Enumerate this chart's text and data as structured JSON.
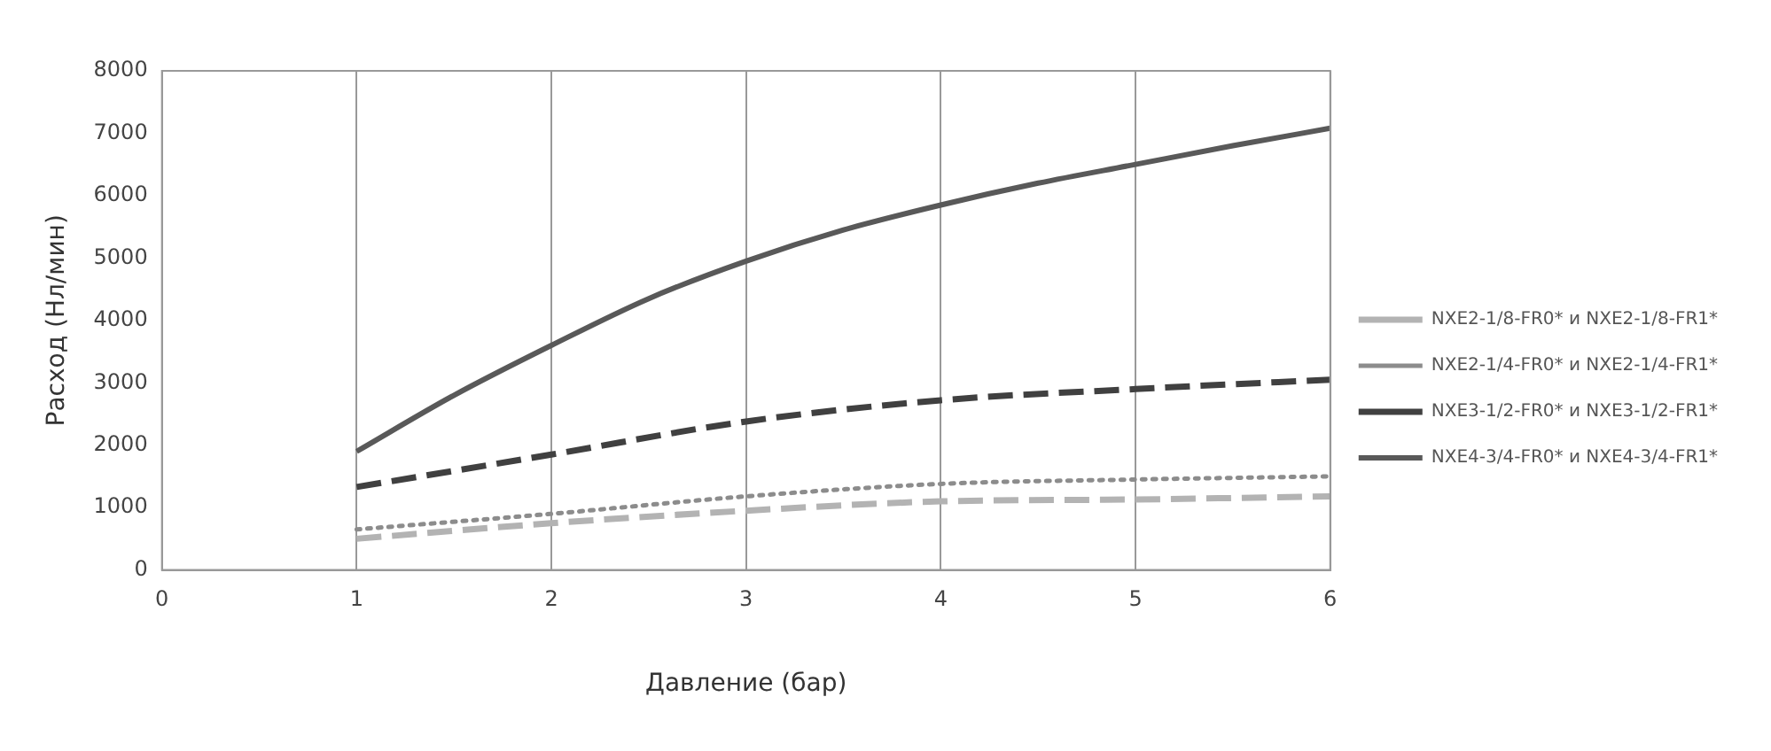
{
  "chart_data": {
    "type": "line",
    "xlabel": "Давление (бар)",
    "ylabel": "Расход (Нл/мин)",
    "xlim": [
      0,
      6
    ],
    "xticks": [
      0,
      1,
      2,
      3,
      4,
      5,
      6
    ],
    "ylim": [
      0,
      8000
    ],
    "yticks": [
      0,
      1000,
      2000,
      3000,
      4000,
      5000,
      6000,
      7000,
      8000
    ],
    "grid": "x",
    "legend": "right",
    "marker": "none",
    "series": [
      {
        "name": "NXE2-1/8-FR0* и NXE2-1/8-FR1*",
        "color": "#b3b3b3",
        "line_style": "dashed",
        "x": [
          1,
          2,
          3,
          4,
          5,
          6
        ],
        "values": [
          500,
          750,
          950,
          1100,
          1130,
          1180
        ]
      },
      {
        "name": "NXE2-1/4-FR0* и NXE2-1/4-FR1*",
        "color": "#8c8c8c",
        "line_style": "dotted",
        "x": [
          1,
          2,
          3,
          4,
          5,
          6
        ],
        "values": [
          650,
          900,
          1180,
          1380,
          1450,
          1500
        ]
      },
      {
        "name": "NXE3-1/2-FR0* и NXE3-1/2-FR1*",
        "color": "#404040",
        "line_style": "dashed",
        "x": [
          1,
          2,
          3,
          4,
          5,
          6
        ],
        "values": [
          1330,
          1850,
          2380,
          2720,
          2900,
          3050
        ]
      },
      {
        "name": "NXE4-3/4-FR0* и NXE4-3/4-FR1*",
        "color": "#595959",
        "line_style": "solid",
        "x": [
          1,
          1.5,
          2,
          2.5,
          3,
          3.5,
          4,
          4.5,
          5,
          5.5,
          6
        ],
        "values": [
          1900,
          2800,
          3600,
          4350,
          4950,
          5450,
          5850,
          6200,
          6500,
          6800,
          7080
        ]
      }
    ]
  }
}
